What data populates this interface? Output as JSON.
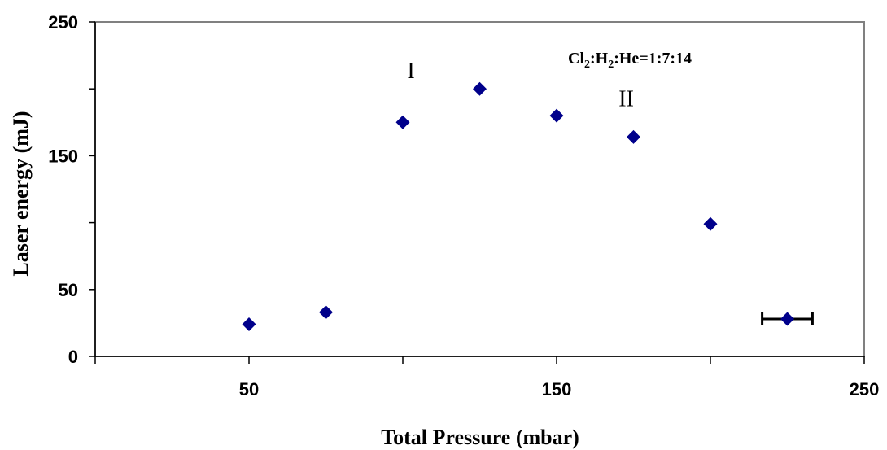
{
  "chart_data": {
    "type": "scatter",
    "title": "",
    "xlabel": "Total Pressure (mbar)",
    "ylabel": "Laser energy (mJ)",
    "xlim": [
      0,
      250
    ],
    "ylim": [
      0,
      250
    ],
    "x_ticks": [
      50,
      150,
      250
    ],
    "y_ticks": [
      0,
      50,
      150,
      250
    ],
    "grid": false,
    "series": [
      {
        "color": "#00008B",
        "marker": "diamond",
        "points": [
          {
            "x": 50,
            "y": 24
          },
          {
            "x": 75,
            "y": 33
          },
          {
            "x": 100,
            "y": 175
          },
          {
            "x": 125,
            "y": 200
          },
          {
            "x": 150,
            "y": 180
          },
          {
            "x": 175,
            "y": 164
          },
          {
            "x": 200,
            "y": 99
          },
          {
            "x": 225,
            "y": 28,
            "x_error": 5
          }
        ]
      }
    ],
    "annotations": [
      {
        "text": "I",
        "x": 100,
        "y": 208
      },
      {
        "text": "II",
        "x": 170,
        "y": 187
      }
    ],
    "formula": {
      "parts": [
        {
          "text": "Cl",
          "sub": false
        },
        {
          "text": "2",
          "sub": true
        },
        {
          "text": ":H",
          "sub": false
        },
        {
          "text": "2",
          "sub": true
        },
        {
          "text": ":He=1:7:14",
          "sub": false
        }
      ]
    }
  }
}
